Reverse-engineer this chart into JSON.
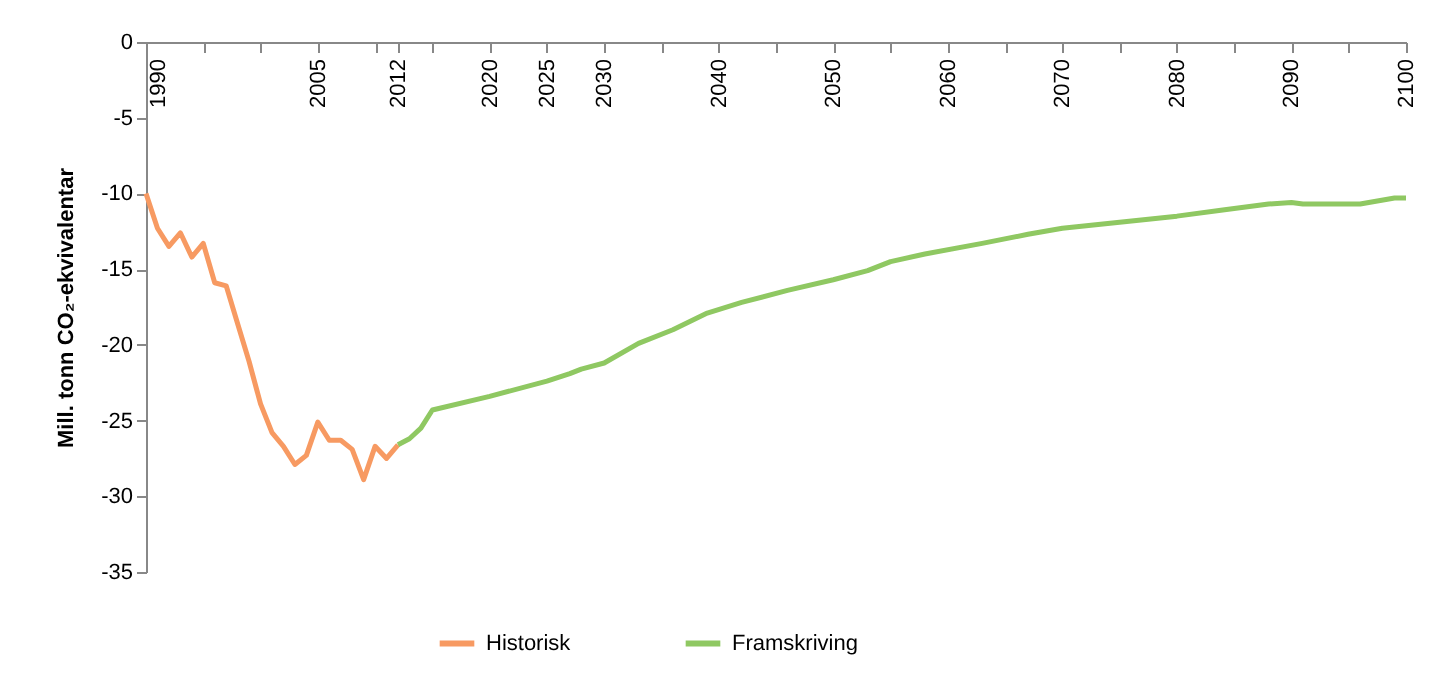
{
  "chart_data": {
    "type": "line",
    "ylabel": "Mill. tonn CO₂-ekvivalentar",
    "xlim": [
      1990,
      2100
    ],
    "ylim": [
      -35,
      0
    ],
    "xticks": [
      1990,
      {
        "value": 1995,
        "label": null
      },
      {
        "value": 2000,
        "label": null
      },
      2005,
      {
        "value": 2010,
        "label": null
      },
      2012,
      {
        "value": 2015,
        "label": null
      },
      2020,
      2025,
      2030,
      {
        "value": 2035,
        "label": null
      },
      2040,
      {
        "value": 2045,
        "label": null
      },
      2050,
      {
        "value": 2055,
        "label": null
      },
      2060,
      {
        "value": 2065,
        "label": null
      },
      2070,
      {
        "value": 2075,
        "label": null
      },
      2080,
      {
        "value": 2085,
        "label": null
      },
      2090,
      {
        "value": 2095,
        "label": null
      },
      2100
    ],
    "yticks": [
      -35,
      -30,
      -25,
      -20,
      -15,
      -10,
      -5,
      0
    ],
    "grid": false,
    "legend": "bottom",
    "marker": "none",
    "line_style": "solid",
    "series": [
      {
        "name": "Historisk",
        "color": "#f79a62",
        "x": [
          1990,
          1991,
          1992,
          1993,
          1994,
          1995,
          1996,
          1997,
          1998,
          1999,
          2000,
          2001,
          2002,
          2003,
          2004,
          2005,
          2006,
          2007,
          2008,
          2009,
          2010,
          2011,
          2012
        ],
        "values": [
          -10,
          -12.3,
          -13.5,
          -12.6,
          -14.2,
          -13.3,
          -15.9,
          -16.1,
          -18.6,
          -21.1,
          -23.9,
          -25.8,
          -26.7,
          -27.9,
          -27.3,
          -25.1,
          -26.3,
          -26.3,
          -26.9,
          -28.9,
          -26.7,
          -27.5,
          -26.6
        ]
      },
      {
        "name": "Framskriving",
        "color": "#8fc862",
        "x": [
          2012,
          2013,
          2014,
          2015,
          2020,
          2025,
          2027,
          2028,
          2030,
          2033,
          2036,
          2039,
          2042,
          2046,
          2050,
          2053,
          2055,
          2058,
          2063,
          2067,
          2070,
          2075,
          2080,
          2084,
          2088,
          2090,
          2091,
          2096,
          2099,
          2100
        ],
        "values": [
          -26.6,
          -26.2,
          -25.5,
          -24.3,
          -23.4,
          -22.4,
          -21.9,
          -21.6,
          -21.2,
          -19.9,
          -19.0,
          -17.9,
          -17.2,
          -16.4,
          -15.7,
          -15.1,
          -14.5,
          -14.0,
          -13.3,
          -12.7,
          -12.3,
          -11.9,
          -11.5,
          -11.1,
          -10.7,
          -10.6,
          -10.7,
          -10.7,
          -10.3,
          -10.3
        ]
      }
    ]
  }
}
